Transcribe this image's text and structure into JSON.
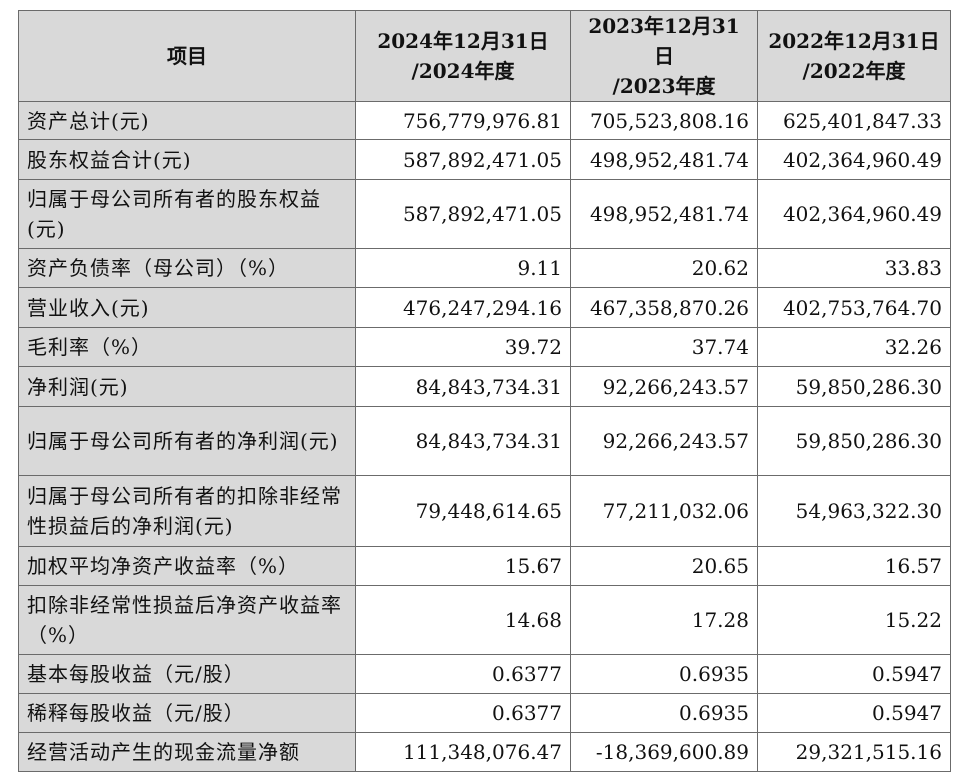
{
  "table": {
    "header": [
      "项目",
      "2024年12月31日\n/2024年度",
      "2023年12月31日\n/2023年度",
      "2022年12月31日\n/2022年度"
    ],
    "rows": [
      [
        "资产总计(元)",
        "756,779,976.81",
        "705,523,808.16",
        "625,401,847.33"
      ],
      [
        "股东权益合计(元)",
        "587,892,471.05",
        "498,952,481.74",
        "402,364,960.49"
      ],
      [
        "归属于母公司所有者的股东权益(元)",
        "587,892,471.05",
        "498,952,481.74",
        "402,364,960.49"
      ],
      [
        "资产负债率（母公司）（%）",
        "9.11",
        "20.62",
        "33.83"
      ],
      [
        "营业收入(元)",
        "476,247,294.16",
        "467,358,870.26",
        "402,753,764.70"
      ],
      [
        "毛利率（%）",
        "39.72",
        "37.74",
        "32.26"
      ],
      [
        "净利润(元)",
        "84,843,734.31",
        "92,266,243.57",
        "59,850,286.30"
      ],
      [
        "归属于母公司所有者的净利润(元)",
        "84,843,734.31",
        "92,266,243.57",
        "59,850,286.30"
      ],
      [
        "归属于母公司所有者的扣除非经常性损益后的净利润(元)",
        "79,448,614.65",
        "77,211,032.06",
        "54,963,322.30"
      ],
      [
        "加权平均净资产收益率（%）",
        "15.67",
        "20.65",
        "16.57"
      ],
      [
        "扣除非经常性损益后净资产收益率（%）",
        "14.68",
        "17.28",
        "15.22"
      ],
      [
        "基本每股收益（元/股）",
        "0.6377",
        "0.6935",
        "0.5947"
      ],
      [
        "稀释每股收益（元/股）",
        "0.6377",
        "0.6935",
        "0.5947"
      ],
      [
        "经营活动产生的现金流量净额",
        "111,348,076.47",
        "-18,369,600.89",
        "29,321,515.16"
      ]
    ]
  }
}
